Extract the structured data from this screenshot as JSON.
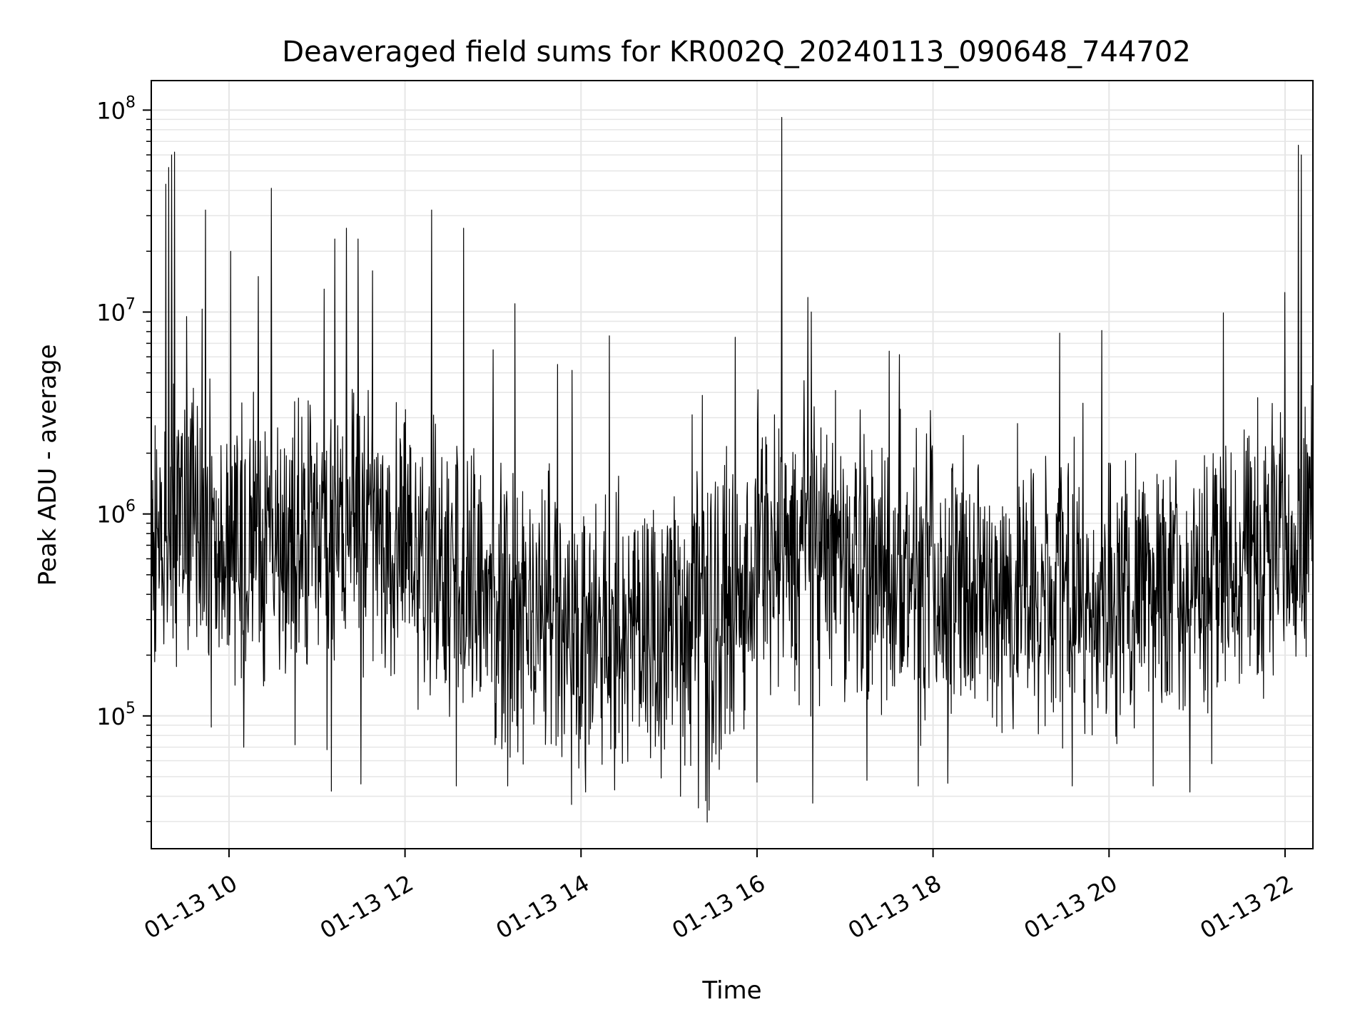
{
  "chart_data": {
    "type": "line",
    "title": "Deaveraged field sums for KR002Q_20240113_090648_744702",
    "xlabel": "Time",
    "ylabel": "Peak ADU - average",
    "x_scale": "time",
    "y_scale": "log",
    "xlim": [
      "2024-01-13 09:07",
      "2024-01-13 22:19"
    ],
    "ylim": [
      22000,
      140000000
    ],
    "x_ticks": [
      {
        "value": "2024-01-13 10:00",
        "label": "01-13 10"
      },
      {
        "value": "2024-01-13 12:00",
        "label": "01-13 12"
      },
      {
        "value": "2024-01-13 14:00",
        "label": "01-13 14"
      },
      {
        "value": "2024-01-13 16:00",
        "label": "01-13 16"
      },
      {
        "value": "2024-01-13 18:00",
        "label": "01-13 18"
      },
      {
        "value": "2024-01-13 20:00",
        "label": "01-13 20"
      },
      {
        "value": "2024-01-13 22:00",
        "label": "01-13 22"
      }
    ],
    "y_ticks": [
      {
        "value": 100000,
        "base": "10",
        "exp": "5"
      },
      {
        "value": 1000000,
        "base": "10",
        "exp": "6"
      },
      {
        "value": 10000000,
        "base": "10",
        "exp": "7"
      },
      {
        "value": 100000000,
        "base": "10",
        "exp": "8"
      }
    ],
    "grid": true,
    "line_color": "#000000",
    "grid_color": "#e6e6e6",
    "series": [
      {
        "baseline": [
          [
            "2024-01-13 09:07",
            750000
          ],
          [
            "2024-01-13 09:30",
            1000000
          ],
          [
            "2024-01-13 10:00",
            800000
          ],
          [
            "2024-01-13 10:30",
            700000
          ],
          [
            "2024-01-13 11:00",
            750000
          ],
          [
            "2024-01-13 11:30",
            850000
          ],
          [
            "2024-01-13 12:00",
            600000
          ],
          [
            "2024-01-13 12:30",
            500000
          ],
          [
            "2024-01-13 13:00",
            350000
          ],
          [
            "2024-01-13 14:00",
            300000
          ],
          [
            "2024-01-13 15:00",
            280000
          ],
          [
            "2024-01-13 15:45",
            350000
          ],
          [
            "2024-01-13 16:00",
            600000
          ],
          [
            "2024-01-13 16:30",
            650000
          ],
          [
            "2024-01-13 17:00",
            550000
          ],
          [
            "2024-01-13 18:00",
            450000
          ],
          [
            "2024-01-13 19:00",
            400000
          ],
          [
            "2024-01-13 20:00",
            400000
          ],
          [
            "2024-01-13 21:00",
            500000
          ],
          [
            "2024-01-13 21:30",
            650000
          ],
          [
            "2024-01-13 22:00",
            800000
          ],
          [
            "2024-01-13 22:19",
            900000
          ]
        ],
        "spikes": [
          [
            "2024-01-13 09:17",
            43000000
          ],
          [
            "2024-01-13 09:19",
            52000000
          ],
          [
            "2024-01-13 09:21",
            60000000
          ],
          [
            "2024-01-13 09:23",
            62000000
          ],
          [
            "2024-01-13 09:31",
            9500000
          ],
          [
            "2024-01-13 09:44",
            32000000
          ],
          [
            "2024-01-13 10:01",
            20000000
          ],
          [
            "2024-01-13 10:20",
            15000000
          ],
          [
            "2024-01-13 10:29",
            41000000
          ],
          [
            "2024-01-13 11:05",
            13000000
          ],
          [
            "2024-01-13 11:12",
            23000000
          ],
          [
            "2024-01-13 11:20",
            26000000
          ],
          [
            "2024-01-13 11:28",
            23000000
          ],
          [
            "2024-01-13 11:38",
            16000000
          ],
          [
            "2024-01-13 12:18",
            32000000
          ],
          [
            "2024-01-13 12:40",
            26000000
          ],
          [
            "2024-01-13 13:00",
            6500000
          ],
          [
            "2024-01-13 13:15",
            11000000
          ],
          [
            "2024-01-13 13:44",
            5500000
          ],
          [
            "2024-01-13 14:23",
            7600000
          ],
          [
            "2024-01-13 15:45",
            7500000
          ],
          [
            "2024-01-13 16:17",
            92000000
          ],
          [
            "2024-01-13 16:37",
            10000000
          ],
          [
            "2024-01-13 17:30",
            6400000
          ],
          [
            "2024-01-13 19:55",
            8100000
          ],
          [
            "2024-01-13 22:00",
            12500000
          ],
          [
            "2024-01-13 22:09",
            67000000
          ],
          [
            "2024-01-13 22:11",
            60000000
          ]
        ],
        "dips": [
          [
            "2024-01-13 09:48",
            88000
          ],
          [
            "2024-01-13 10:10",
            70000
          ],
          [
            "2024-01-13 10:45",
            72000
          ],
          [
            "2024-01-13 11:07",
            68000
          ],
          [
            "2024-01-13 11:30",
            46000
          ],
          [
            "2024-01-13 12:35",
            45000
          ],
          [
            "2024-01-13 13:10",
            45000
          ],
          [
            "2024-01-13 14:03",
            42000
          ],
          [
            "2024-01-13 14:23",
            43000
          ],
          [
            "2024-01-13 15:08",
            40000
          ],
          [
            "2024-01-13 15:20",
            35000
          ],
          [
            "2024-01-13 15:25",
            38000
          ],
          [
            "2024-01-13 16:00",
            47000
          ],
          [
            "2024-01-13 16:38",
            37000
          ],
          [
            "2024-01-13 17:15",
            48000
          ],
          [
            "2024-01-13 17:50",
            45000
          ],
          [
            "2024-01-13 19:35",
            45000
          ],
          [
            "2024-01-13 20:30",
            45000
          ],
          [
            "2024-01-13 20:55",
            42000
          ],
          [
            "2024-01-13 21:10",
            58000
          ]
        ],
        "noise_spread_decades": 1.05,
        "sample_count": 2400
      }
    ]
  }
}
